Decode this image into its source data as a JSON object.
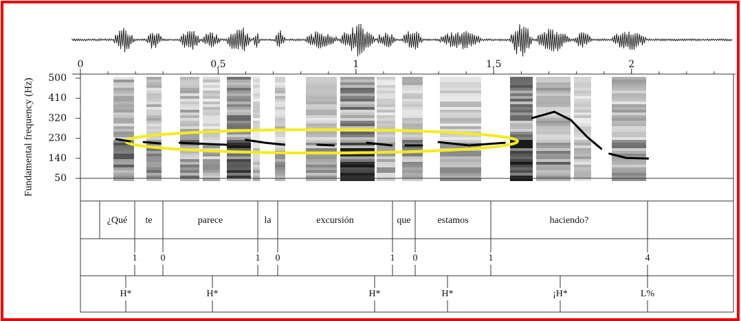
{
  "chart_data": {
    "type": "line",
    "y_label": "Fundamental frequency (Hz)",
    "xlim": [
      0,
      2.37
    ],
    "xticks": [
      0,
      {
        "value": 0.5,
        "label": "0,5"
      },
      1,
      {
        "value": 1.5,
        "label": "1,5"
      },
      2
    ],
    "ylim": [
      50,
      500
    ],
    "yticks": [
      50,
      140,
      230,
      320,
      410,
      500
    ],
    "x": [
      0.13,
      0.18,
      null,
      0.23,
      0.29,
      null,
      0.36,
      0.46,
      0.53,
      null,
      0.6,
      0.67,
      0.74,
      null,
      0.86,
      0.92,
      null,
      1.04,
      1.13,
      null,
      1.18,
      1.24,
      null,
      1.3,
      1.41,
      1.54,
      null,
      1.64,
      1.72,
      1.78,
      1.84,
      1.89,
      null,
      1.92,
      1.98,
      2.06
    ],
    "series": [
      {
        "color": "#000000",
        "values": [
          226,
          216,
          null,
          213,
          207,
          null,
          210,
          204,
          201,
          null,
          223,
          210,
          201,
          null,
          201,
          198,
          null,
          210,
          198,
          null,
          198,
          198,
          null,
          213,
          198,
          210,
          null,
          321,
          349,
          312,
          235,
          183,
          null,
          161,
          142,
          139
        ]
      }
    ],
    "words": [
      "¿Qué",
      "te",
      "parece",
      "la",
      "excursión",
      "que",
      "estamos",
      "haciendo?"
    ],
    "break_indices": [
      "1",
      "0",
      "1",
      "0",
      "1",
      "0",
      "1",
      "4"
    ],
    "tones": [
      "H*",
      "H*",
      "H*",
      "H*",
      "¡H*",
      "L%"
    ]
  }
}
